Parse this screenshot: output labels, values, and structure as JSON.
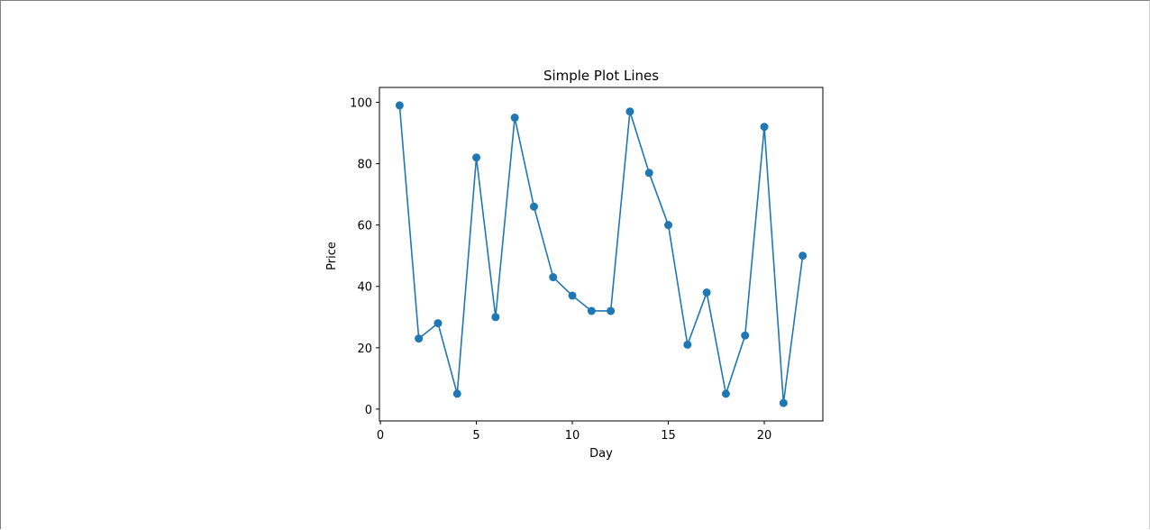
{
  "window": {
    "background": "#ffffff"
  },
  "chart_data": {
    "type": "line",
    "title": "Simple Plot Lines",
    "xlabel": "Day",
    "ylabel": "Price",
    "x": [
      1,
      2,
      3,
      4,
      5,
      6,
      7,
      8,
      9,
      10,
      11,
      12,
      13,
      14,
      15,
      16,
      17,
      18,
      19,
      20,
      21,
      22
    ],
    "series": [
      {
        "values": [
          99,
          23,
          28,
          5,
          82,
          30,
          95,
          66,
          43,
          37,
          32,
          32,
          97,
          77,
          60,
          21,
          38,
          5,
          24,
          92,
          2,
          50
        ],
        "color": "#1f77b4",
        "marker": "circle"
      }
    ],
    "xlim": [
      -0.05,
      23.05
    ],
    "ylim": [
      -3.85,
      104.85
    ],
    "xticks": [
      0,
      5,
      10,
      15,
      20
    ],
    "yticks": [
      0,
      20,
      40,
      60,
      80,
      100
    ],
    "grid": false,
    "legend": "none"
  }
}
